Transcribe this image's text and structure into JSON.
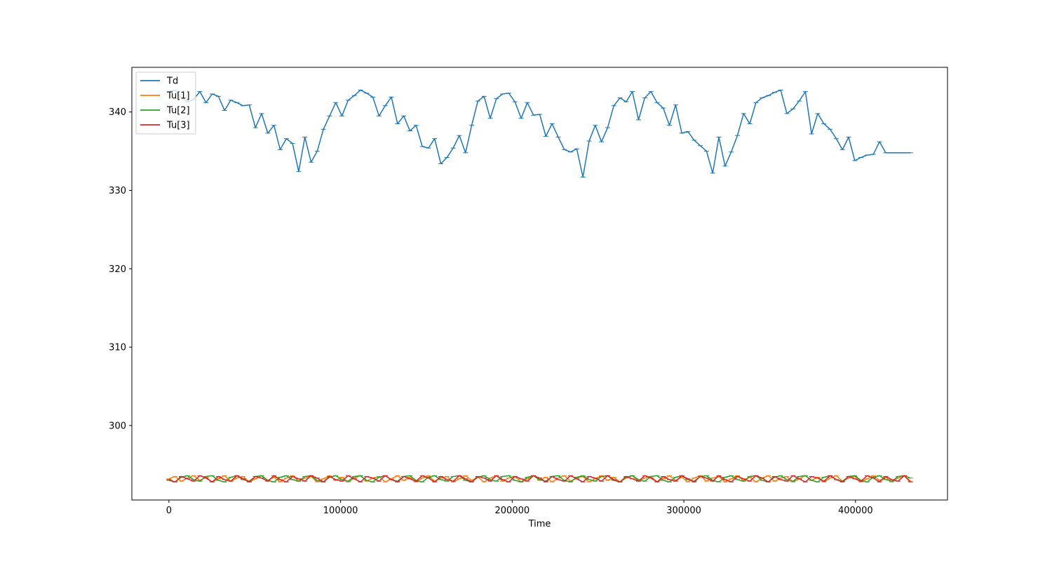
{
  "chart_data": {
    "type": "line",
    "title": "",
    "xlabel": "Time",
    "ylabel": "",
    "xlim": [
      -21600,
      453600
    ],
    "ylim": [
      290.5,
      345.7
    ],
    "grid": false,
    "legend_position": "top-left",
    "x_ticks": [
      {
        "value": 0,
        "label": "0"
      },
      {
        "value": 100000,
        "label": "100000"
      },
      {
        "value": 200000,
        "label": "200000"
      },
      {
        "value": 300000,
        "label": "300000"
      },
      {
        "value": 400000,
        "label": "400000"
      }
    ],
    "y_ticks": [
      {
        "value": 300,
        "label": "300"
      },
      {
        "value": 310,
        "label": "310"
      },
      {
        "value": 320,
        "label": "320"
      },
      {
        "value": 330,
        "label": "330"
      },
      {
        "value": 340,
        "label": "340"
      }
    ],
    "x": [
      0,
      3600,
      7200,
      10800,
      14400,
      18000,
      21600,
      25200,
      28800,
      32400,
      36000,
      39600,
      43200,
      46800,
      50400,
      54000,
      57600,
      61200,
      64800,
      68400,
      72000,
      75600,
      79200,
      82800,
      86400,
      90000,
      93600,
      97200,
      100800,
      104400,
      108000,
      111600,
      115200,
      118800,
      122400,
      126000,
      129600,
      133200,
      136800,
      140400,
      144000,
      147600,
      151200,
      154800,
      158400,
      162000,
      165600,
      169200,
      172800,
      176400,
      180000,
      183600,
      187200,
      190800,
      194400,
      198000,
      201600,
      205200,
      208800,
      212400,
      216000,
      219600,
      223200,
      226800,
      230400,
      234000,
      237600,
      241200,
      244800,
      248400,
      252000,
      255600,
      259200,
      262800,
      266400,
      270000,
      273600,
      277200,
      280800,
      284400,
      288000,
      291600,
      295200,
      298800,
      302400,
      306000,
      309600,
      313200,
      316800,
      320400,
      324000,
      327600,
      331200,
      334800,
      338400,
      342000,
      345600,
      349200,
      352800,
      356400,
      360000,
      363600,
      367200,
      370800,
      374400,
      378000,
      381600,
      385200,
      388800,
      392400,
      396000,
      399600,
      403200,
      406800,
      410400,
      414000,
      417600,
      421200,
      424800,
      428400,
      432000
    ],
    "series": [
      {
        "name": "Td",
        "color": "#1f77b4",
        "marker": "tick",
        "values": [
          342.6,
          342.8,
          341.8,
          341.3,
          341.6,
          342.6,
          341.2,
          342.3,
          342.0,
          340.2,
          341.5,
          341.2,
          340.8,
          340.9,
          338.0,
          339.8,
          337.3,
          338.3,
          335.2,
          336.6,
          336.0,
          332.4,
          336.8,
          333.6,
          335.0,
          337.8,
          339.5,
          341.2,
          339.5,
          341.5,
          342.1,
          342.8,
          342.4,
          341.9,
          339.5,
          340.8,
          341.9,
          338.5,
          339.5,
          337.6,
          338.3,
          335.6,
          335.4,
          336.6,
          333.4,
          334.2,
          335.4,
          337.0,
          334.8,
          338.3,
          341.4,
          342.0,
          339.2,
          341.7,
          342.3,
          342.4,
          341.3,
          339.2,
          341.2,
          339.6,
          339.7,
          336.9,
          338.5,
          336.8,
          335.2,
          334.9,
          335.3,
          331.7,
          336.3,
          338.3,
          336.2,
          338.0,
          340.8,
          341.8,
          341.3,
          342.6,
          339.0,
          341.8,
          342.6,
          341.2,
          340.5,
          338.3,
          340.9,
          337.3,
          337.5,
          336.4,
          335.7,
          335.0,
          332.2,
          336.8,
          333.1,
          334.9,
          337.0,
          339.8,
          338.5,
          341.2,
          341.8,
          342.1,
          342.5,
          342.8,
          339.8,
          340.4,
          341.4,
          342.6,
          337.2,
          339.8,
          338.5,
          337.8,
          336.6,
          335.2,
          336.8,
          333.8,
          334.2,
          334.5,
          334.6,
          336.2,
          334.8,
          334.8,
          334.8,
          334.8,
          334.8
        ]
      },
      {
        "name": "Tu[1]",
        "color": "#ff7f0e",
        "marker": "tick",
        "values": [
          293.2,
          293.5,
          292.9,
          293.3,
          293.6,
          293.0,
          293.4,
          292.8,
          293.2,
          293.6,
          292.9,
          293.3,
          293.5,
          292.8,
          293.2,
          293.6,
          293.0,
          293.4,
          292.8,
          293.3,
          293.6,
          292.9,
          293.3,
          293.5,
          292.8,
          293.2,
          293.6,
          293.0,
          293.4,
          292.8,
          293.3,
          293.6,
          292.9,
          293.3,
          293.5,
          292.8,
          293.2,
          293.6,
          293.0,
          293.4,
          292.8,
          293.3,
          293.6,
          292.9,
          293.3,
          293.5,
          292.8,
          293.2,
          293.6,
          293.0,
          293.4,
          292.8,
          293.3,
          293.6,
          292.9,
          293.3,
          293.5,
          292.8,
          293.2,
          293.6,
          293.0,
          293.4,
          292.8,
          293.3,
          293.6,
          292.9,
          293.3,
          293.5,
          292.8,
          293.2,
          293.6,
          293.0,
          293.4,
          292.8,
          293.3,
          293.6,
          292.9,
          293.3,
          293.5,
          292.8,
          293.2,
          293.6,
          293.0,
          293.4,
          292.8,
          293.3,
          293.6,
          292.9,
          293.3,
          293.5,
          292.8,
          293.2,
          293.6,
          293.0,
          293.4,
          292.8,
          293.3,
          293.6,
          292.9,
          293.3,
          293.5,
          292.8,
          293.2,
          293.6,
          293.0,
          293.4,
          292.8,
          293.3,
          293.6,
          292.9,
          293.3,
          293.5,
          292.8,
          293.2,
          293.6,
          293.0,
          293.4,
          292.8,
          293.3,
          293.6,
          292.9
        ]
      },
      {
        "name": "Tu[2]",
        "color": "#2ca02c",
        "marker": "tick",
        "values": [
          293.0,
          292.8,
          293.4,
          293.6,
          293.1,
          292.9,
          293.5,
          293.6,
          293.0,
          292.8,
          293.4,
          293.6,
          293.1,
          292.9,
          293.5,
          293.6,
          293.0,
          292.8,
          293.4,
          293.6,
          293.1,
          292.9,
          293.5,
          293.6,
          293.0,
          292.8,
          293.4,
          293.6,
          293.1,
          292.9,
          293.5,
          293.6,
          293.0,
          292.8,
          293.4,
          293.6,
          293.1,
          292.9,
          293.5,
          293.6,
          293.0,
          292.8,
          293.4,
          293.6,
          293.1,
          292.9,
          293.5,
          293.6,
          293.0,
          292.8,
          293.4,
          293.6,
          293.1,
          292.9,
          293.5,
          293.6,
          293.0,
          292.8,
          293.4,
          293.6,
          293.1,
          292.9,
          293.5,
          293.6,
          293.0,
          292.8,
          293.4,
          293.6,
          293.1,
          292.9,
          293.5,
          293.6,
          293.0,
          292.8,
          293.4,
          293.6,
          293.1,
          292.9,
          293.5,
          293.6,
          293.0,
          292.8,
          293.4,
          293.6,
          293.1,
          292.9,
          293.5,
          293.6,
          293.0,
          292.8,
          293.4,
          293.6,
          293.1,
          292.9,
          293.5,
          293.6,
          293.0,
          292.8,
          293.4,
          293.6,
          293.1,
          292.9,
          293.5,
          293.6,
          293.0,
          292.8,
          293.4,
          293.6,
          293.1,
          292.9,
          293.5,
          293.6,
          293.0,
          292.8,
          293.4,
          293.6,
          293.1,
          292.9,
          293.5,
          293.6,
          293.3
        ]
      },
      {
        "name": "Tu[3]",
        "color": "#d62728",
        "marker": "tick",
        "values": [
          293.1,
          292.8,
          293.5,
          293.2,
          292.9,
          293.6,
          293.3,
          292.8,
          293.5,
          293.1,
          292.9,
          293.6,
          293.2,
          292.8,
          293.5,
          293.3,
          292.9,
          293.6,
          293.1,
          292.8,
          293.5,
          293.2,
          292.9,
          293.6,
          293.3,
          292.8,
          293.5,
          293.1,
          292.9,
          293.6,
          293.2,
          292.8,
          293.5,
          293.3,
          292.9,
          293.6,
          293.1,
          292.8,
          293.5,
          293.2,
          292.9,
          293.6,
          293.3,
          292.8,
          293.5,
          293.1,
          292.9,
          293.6,
          293.2,
          292.8,
          293.5,
          293.3,
          292.9,
          293.6,
          293.1,
          292.8,
          293.5,
          293.2,
          292.9,
          293.6,
          293.3,
          292.8,
          293.5,
          293.1,
          292.9,
          293.6,
          293.2,
          292.8,
          293.5,
          293.3,
          292.9,
          293.6,
          293.1,
          292.8,
          293.5,
          293.2,
          292.9,
          293.6,
          293.3,
          292.8,
          293.5,
          293.1,
          292.9,
          293.6,
          293.2,
          292.8,
          293.5,
          293.3,
          292.9,
          293.6,
          293.1,
          292.8,
          293.5,
          293.2,
          292.9,
          293.6,
          293.3,
          292.8,
          293.5,
          293.1,
          292.9,
          293.6,
          293.2,
          292.8,
          293.5,
          293.3,
          292.9,
          293.6,
          293.1,
          292.8,
          293.5,
          293.2,
          292.9,
          293.6,
          293.3,
          292.8,
          293.5,
          293.1,
          292.9,
          293.6,
          292.8
        ]
      }
    ]
  }
}
